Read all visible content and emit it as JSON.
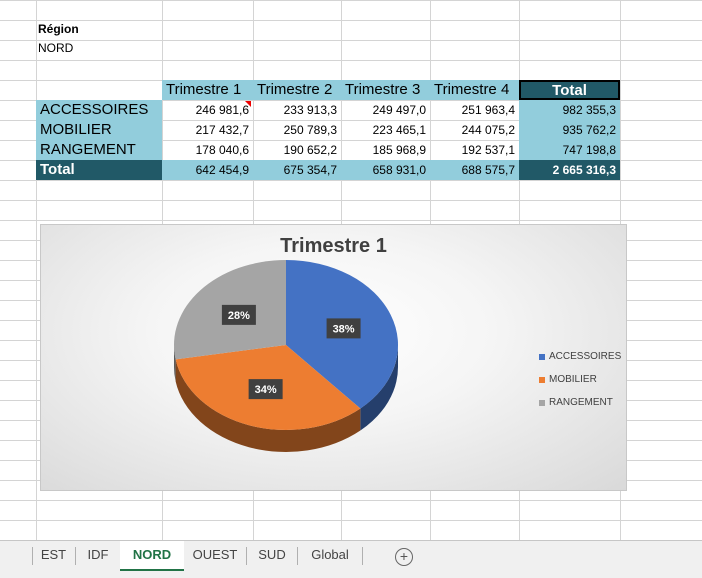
{
  "header": {
    "region_label": "Région",
    "region_value": "NORD"
  },
  "table": {
    "columns": [
      "Trimestre 1",
      "Trimestre 2",
      "Trimestre 3",
      "Trimestre 4",
      "Total"
    ],
    "rows": [
      {
        "label": "ACCESSOIRES",
        "values": [
          "246 981,6",
          "233 913,3",
          "249 497,0",
          "251 963,4",
          "982 355,3"
        ]
      },
      {
        "label": "MOBILIER",
        "values": [
          "217 432,7",
          "250 789,3",
          "223 465,1",
          "244 075,2",
          "935 762,2"
        ]
      },
      {
        "label": "RANGEMENT",
        "values": [
          "178 040,6",
          "190 652,2",
          "185 968,9",
          "192 537,1",
          "747 198,8"
        ]
      }
    ],
    "total": {
      "label": "Total",
      "values": [
        "642 454,9",
        "675 354,7",
        "658 931,0",
        "688 575,7",
        "2 665 316,3"
      ]
    }
  },
  "chart_data": {
    "type": "pie",
    "title": "Trimestre 1",
    "categories": [
      "ACCESSOIRES",
      "MOBILIER",
      "RANGEMENT"
    ],
    "values": [
      246981.6,
      217432.7,
      178040.6
    ],
    "data_labels": [
      "38%",
      "34%",
      "28%"
    ],
    "colors": [
      "#4472c4",
      "#ed7d31",
      "#a5a5a5"
    ],
    "legend_position": "right"
  },
  "tabs": [
    "EST",
    "IDF",
    "NORD",
    "OUEST",
    "SUD",
    "Global"
  ],
  "active_tab": "NORD",
  "icons": {
    "add_sheet": "plus-circle-icon"
  }
}
